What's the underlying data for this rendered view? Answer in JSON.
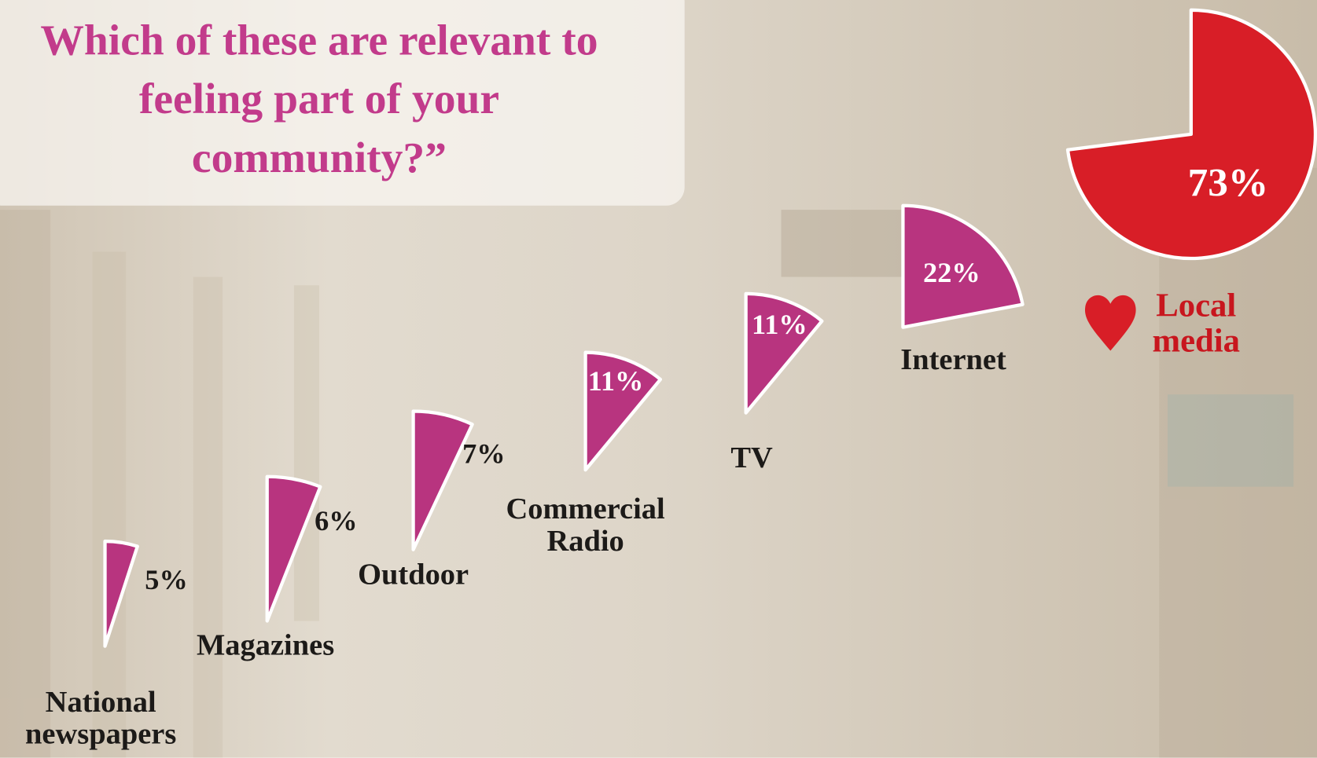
{
  "chart_data": {
    "type": "pie",
    "title": [
      "Which of these are relevant to",
      "feeling part of your",
      "community?”"
    ],
    "categories": [
      "National newspapers",
      "Magazines",
      "Outdoor",
      "Commercial Radio",
      "TV",
      "Internet",
      "Local media"
    ],
    "values": [
      5,
      6,
      7,
      11,
      11,
      22,
      73
    ],
    "value_labels": [
      "5%",
      "6%",
      "7%",
      "11%",
      "11%",
      "22%",
      "73%"
    ],
    "colors": [
      "#b8347f",
      "#b8347f",
      "#b8347f",
      "#b8347f",
      "#b8347f",
      "#b8347f",
      "#d81e27"
    ]
  }
}
